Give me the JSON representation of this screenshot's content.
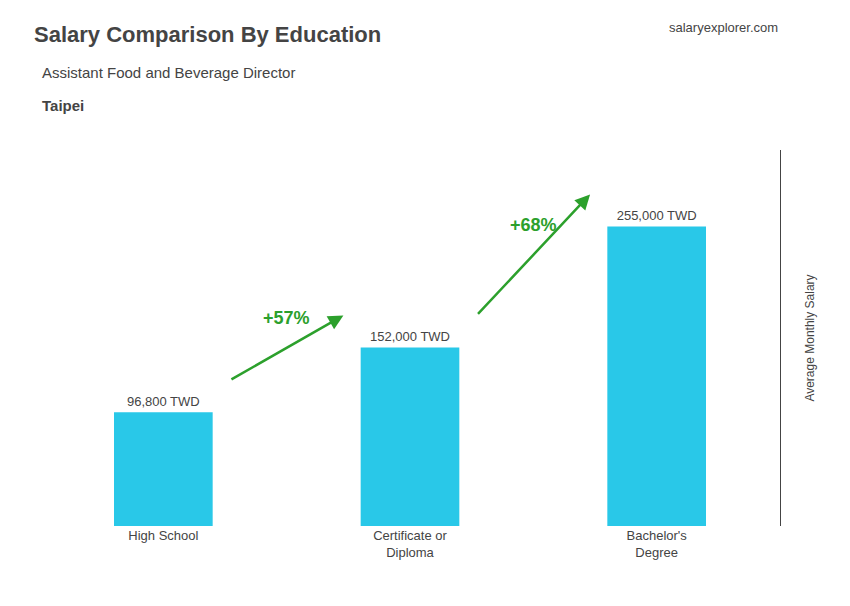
{
  "chart_data": {
    "type": "bar",
    "title": "Salary Comparison By Education",
    "subtitle": "Assistant Food and Beverage Director",
    "ylabel": "Average Monthly Salary",
    "categories": [
      "High School",
      "Certificate or\nDiploma",
      "Bachelor's\nDegree"
    ],
    "values": [
      96800,
      152000,
      255000
    ],
    "value_labels": [
      "96,800 TWD",
      "152,000 TWD",
      "255,000 TWD"
    ],
    "data_labels": true,
    "color": "#29c8e8",
    "ylim": [
      0,
      320000
    ],
    "grid": false,
    "tick_labels": "x",
    "annotations": [
      {
        "text": "Taipei"
      },
      {
        "text": "salaryexplorer.com"
      },
      {
        "text": "+57%",
        "from": "High School",
        "to": "Certificate or\nDiploma"
      },
      {
        "text": "+68%",
        "from": "Certificate or\nDiploma",
        "to": "Bachelor's\nDegree"
      }
    ]
  }
}
